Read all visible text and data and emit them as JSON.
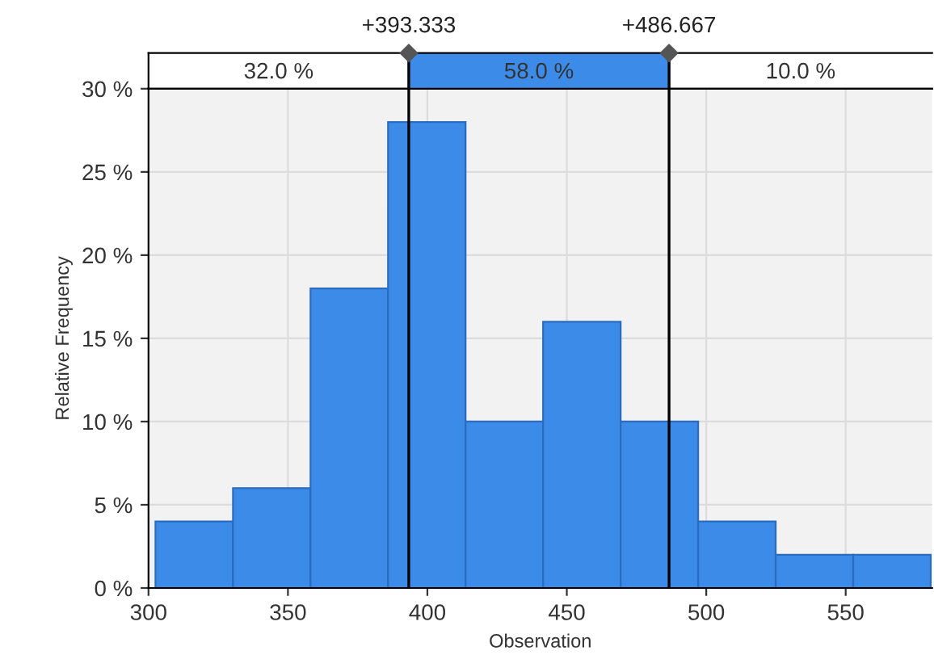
{
  "chart_data": {
    "type": "histogram",
    "xlabel": "Observation",
    "ylabel": "Relative Frequency",
    "bins": [
      302.5,
      330.3,
      358.1,
      385.9,
      413.7,
      441.5,
      469.3,
      497.1,
      524.9,
      552.7,
      580.5
    ],
    "values": [
      4,
      6,
      18,
      28,
      10,
      16,
      10,
      4,
      2,
      2
    ],
    "color": "#3d8be8",
    "xlim": [
      300,
      581
    ],
    "xticks": [
      300,
      350,
      400,
      450,
      500,
      550
    ],
    "ylim": [
      0,
      30
    ],
    "yticks": [
      {
        "value": 0,
        "label": "0 %"
      },
      {
        "value": 5,
        "label": "5 %"
      },
      {
        "value": 10,
        "label": "10 %"
      },
      {
        "value": 15,
        "label": "15 %"
      },
      {
        "value": 20,
        "label": "20 %"
      },
      {
        "value": 25,
        "label": "25 %"
      },
      {
        "value": 30,
        "label": "30 %"
      }
    ],
    "grid": true,
    "ref_lines": [
      {
        "axis": "x",
        "value": 393.333,
        "label": "+393.333",
        "color": "#000000"
      },
      {
        "axis": "x",
        "value": 486.667,
        "label": "+486.667",
        "color": "#000000"
      }
    ],
    "annotations": [
      "32.0 %",
      "58.0 %",
      "10.0 %"
    ]
  }
}
